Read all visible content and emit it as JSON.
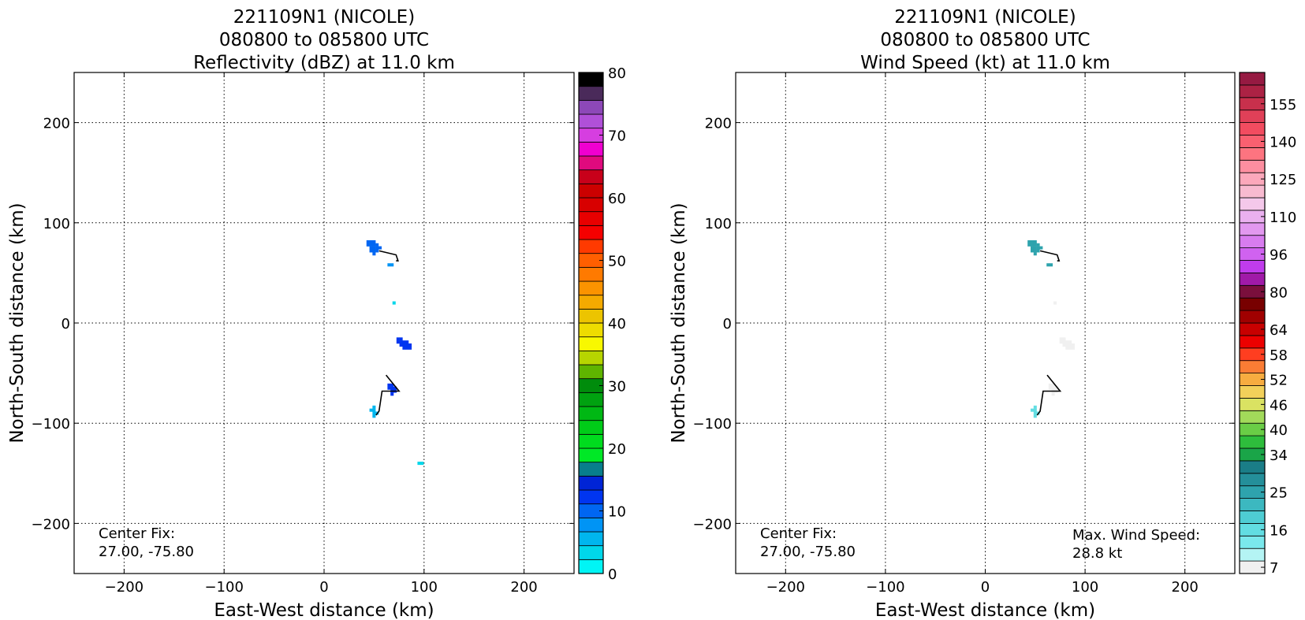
{
  "chart_data": [
    {
      "type": "heatmap",
      "title": [
        "221109N1 (NICOLE)",
        "080800 to 085800 UTC",
        "Reflectivity (dBZ) at 11.0 km"
      ],
      "xlabel": "East-West distance (km)",
      "ylabel": "North-South distance (km)",
      "xlim": [
        -250,
        250
      ],
      "ylim": [
        -250,
        250
      ],
      "xticks": [
        -200,
        -100,
        0,
        100,
        200
      ],
      "yticks": [
        -200,
        -100,
        0,
        100,
        200
      ],
      "xtick_labels": [
        "−200",
        "−100",
        "0",
        "100",
        "200"
      ],
      "ytick_labels": [
        "−200",
        "−100",
        "0",
        "100",
        "200"
      ],
      "grid": true,
      "annotations": [
        {
          "name": "center-fix",
          "lines": [
            "Center Fix:",
            "27.00, -75.80"
          ]
        }
      ],
      "colorbar": {
        "label_values": [
          0,
          10,
          20,
          30,
          40,
          50,
          60,
          70,
          80
        ],
        "label_texts": [
          "0",
          "10",
          "20",
          "30",
          "40",
          "50",
          "60",
          "70",
          "80"
        ],
        "colors": [
          "#00f5f5",
          "#00d7ea",
          "#00b6ee",
          "#0094f5",
          "#0066f2",
          "#0035f0",
          "#0024d6",
          "#087e8c",
          "#00e826",
          "#00dc1e",
          "#00cc18",
          "#00b814",
          "#00a210",
          "#008c0c",
          "#5fb400",
          "#b7d500",
          "#f8f800",
          "#eedc00",
          "#ecc400",
          "#f4aa00",
          "#fb9300",
          "#ff7a00",
          "#ff5f00",
          "#ff3a00",
          "#f50000",
          "#e80000",
          "#d80000",
          "#cc0000",
          "#c8001a",
          "#e00a7e",
          "#f000d0",
          "#d63ee0",
          "#b050d8",
          "#8d48b8",
          "#4a2a5a",
          "#000000"
        ]
      },
      "series": [
        {
          "x": 50,
          "y": 75,
          "value": 10
        },
        {
          "x": 65,
          "y": 58,
          "value": 8
        },
        {
          "x": 70,
          "y": 20,
          "value": 4
        },
        {
          "x": 80,
          "y": -22,
          "value": 12
        },
        {
          "x": 68,
          "y": -68,
          "value": 12
        },
        {
          "x": 50,
          "y": -90,
          "value": 6
        },
        {
          "x": 95,
          "y": -140,
          "value": 4
        }
      ],
      "tracks": [
        {
          "points": [
            [
              55,
              72
            ],
            [
              72,
              68
            ],
            [
              74,
              62
            ],
            [
              72,
              62
            ]
          ]
        },
        {
          "points": [
            [
              62,
              -52
            ],
            [
              75,
              -68
            ],
            [
              58,
              -68
            ],
            [
              55,
              -88
            ],
            [
              52,
              -92
            ]
          ]
        }
      ]
    },
    {
      "type": "heatmap",
      "title": [
        "221109N1 (NICOLE)",
        "080800 to 085800 UTC",
        "Wind Speed (kt) at 11.0 km"
      ],
      "xlabel": "East-West distance (km)",
      "ylabel": "North-South distance (km)",
      "xlim": [
        -250,
        250
      ],
      "ylim": [
        -250,
        250
      ],
      "xticks": [
        -200,
        -100,
        0,
        100,
        200
      ],
      "yticks": [
        -200,
        -100,
        0,
        100,
        200
      ],
      "xtick_labels": [
        "−200",
        "−100",
        "0",
        "100",
        "200"
      ],
      "ytick_labels": [
        "−200",
        "−100",
        "0",
        "100",
        "200"
      ],
      "grid": true,
      "annotations": [
        {
          "name": "center-fix",
          "lines": [
            "Center Fix:",
            "27.00, -75.80"
          ]
        },
        {
          "name": "max-wind-speed",
          "lines": [
            "Max. Wind Speed:",
            "28.8 kt"
          ]
        }
      ],
      "colorbar": {
        "label_texts": [
          "7",
          "16",
          "25",
          "34",
          "40",
          "46",
          "52",
          "58",
          "64",
          "80",
          "96",
          "110",
          "125",
          "140",
          "155"
        ],
        "label_bins": [
          0,
          3,
          6,
          9,
          11,
          13,
          15,
          17,
          19,
          22,
          25,
          28,
          31,
          34,
          37
        ],
        "colors": [
          "#f0f0f0",
          "#b4f4f4",
          "#7ae8ec",
          "#62dde2",
          "#4ecdd3",
          "#3cb8c0",
          "#2ea3ad",
          "#248f9a",
          "#1a7d87",
          "#1aa548",
          "#2ebd3c",
          "#6acd46",
          "#a2da5a",
          "#dae262",
          "#f2d05a",
          "#f7ac40",
          "#fa7c34",
          "#ff3e20",
          "#ec0000",
          "#c80000",
          "#a00000",
          "#780000",
          "#7a0f3c",
          "#a01aa8",
          "#c03cec",
          "#d062f0",
          "#d87cef",
          "#e298ef",
          "#eab0ef",
          "#f4c8ea",
          "#f8bad0",
          "#fca8bb",
          "#fd8ea0",
          "#fd7480",
          "#f96070",
          "#f24c60",
          "#e04058",
          "#c8304c",
          "#ac2244",
          "#961a42"
        ]
      },
      "series": [
        {
          "x": 50,
          "y": 75,
          "value": 25
        },
        {
          "x": 63,
          "y": 58,
          "value": 25
        },
        {
          "x": 70,
          "y": 20,
          "value": 7
        },
        {
          "x": 82,
          "y": -22,
          "value": 9
        },
        {
          "x": 68,
          "y": -68,
          "value": 7
        },
        {
          "x": 50,
          "y": -90,
          "value": 16
        }
      ],
      "tracks": [
        {
          "points": [
            [
              55,
              72
            ],
            [
              72,
              68
            ],
            [
              74,
              62
            ],
            [
              72,
              62
            ]
          ]
        },
        {
          "points": [
            [
              62,
              -52
            ],
            [
              75,
              -68
            ],
            [
              58,
              -68
            ],
            [
              55,
              -88
            ],
            [
              52,
              -92
            ]
          ]
        }
      ]
    }
  ]
}
